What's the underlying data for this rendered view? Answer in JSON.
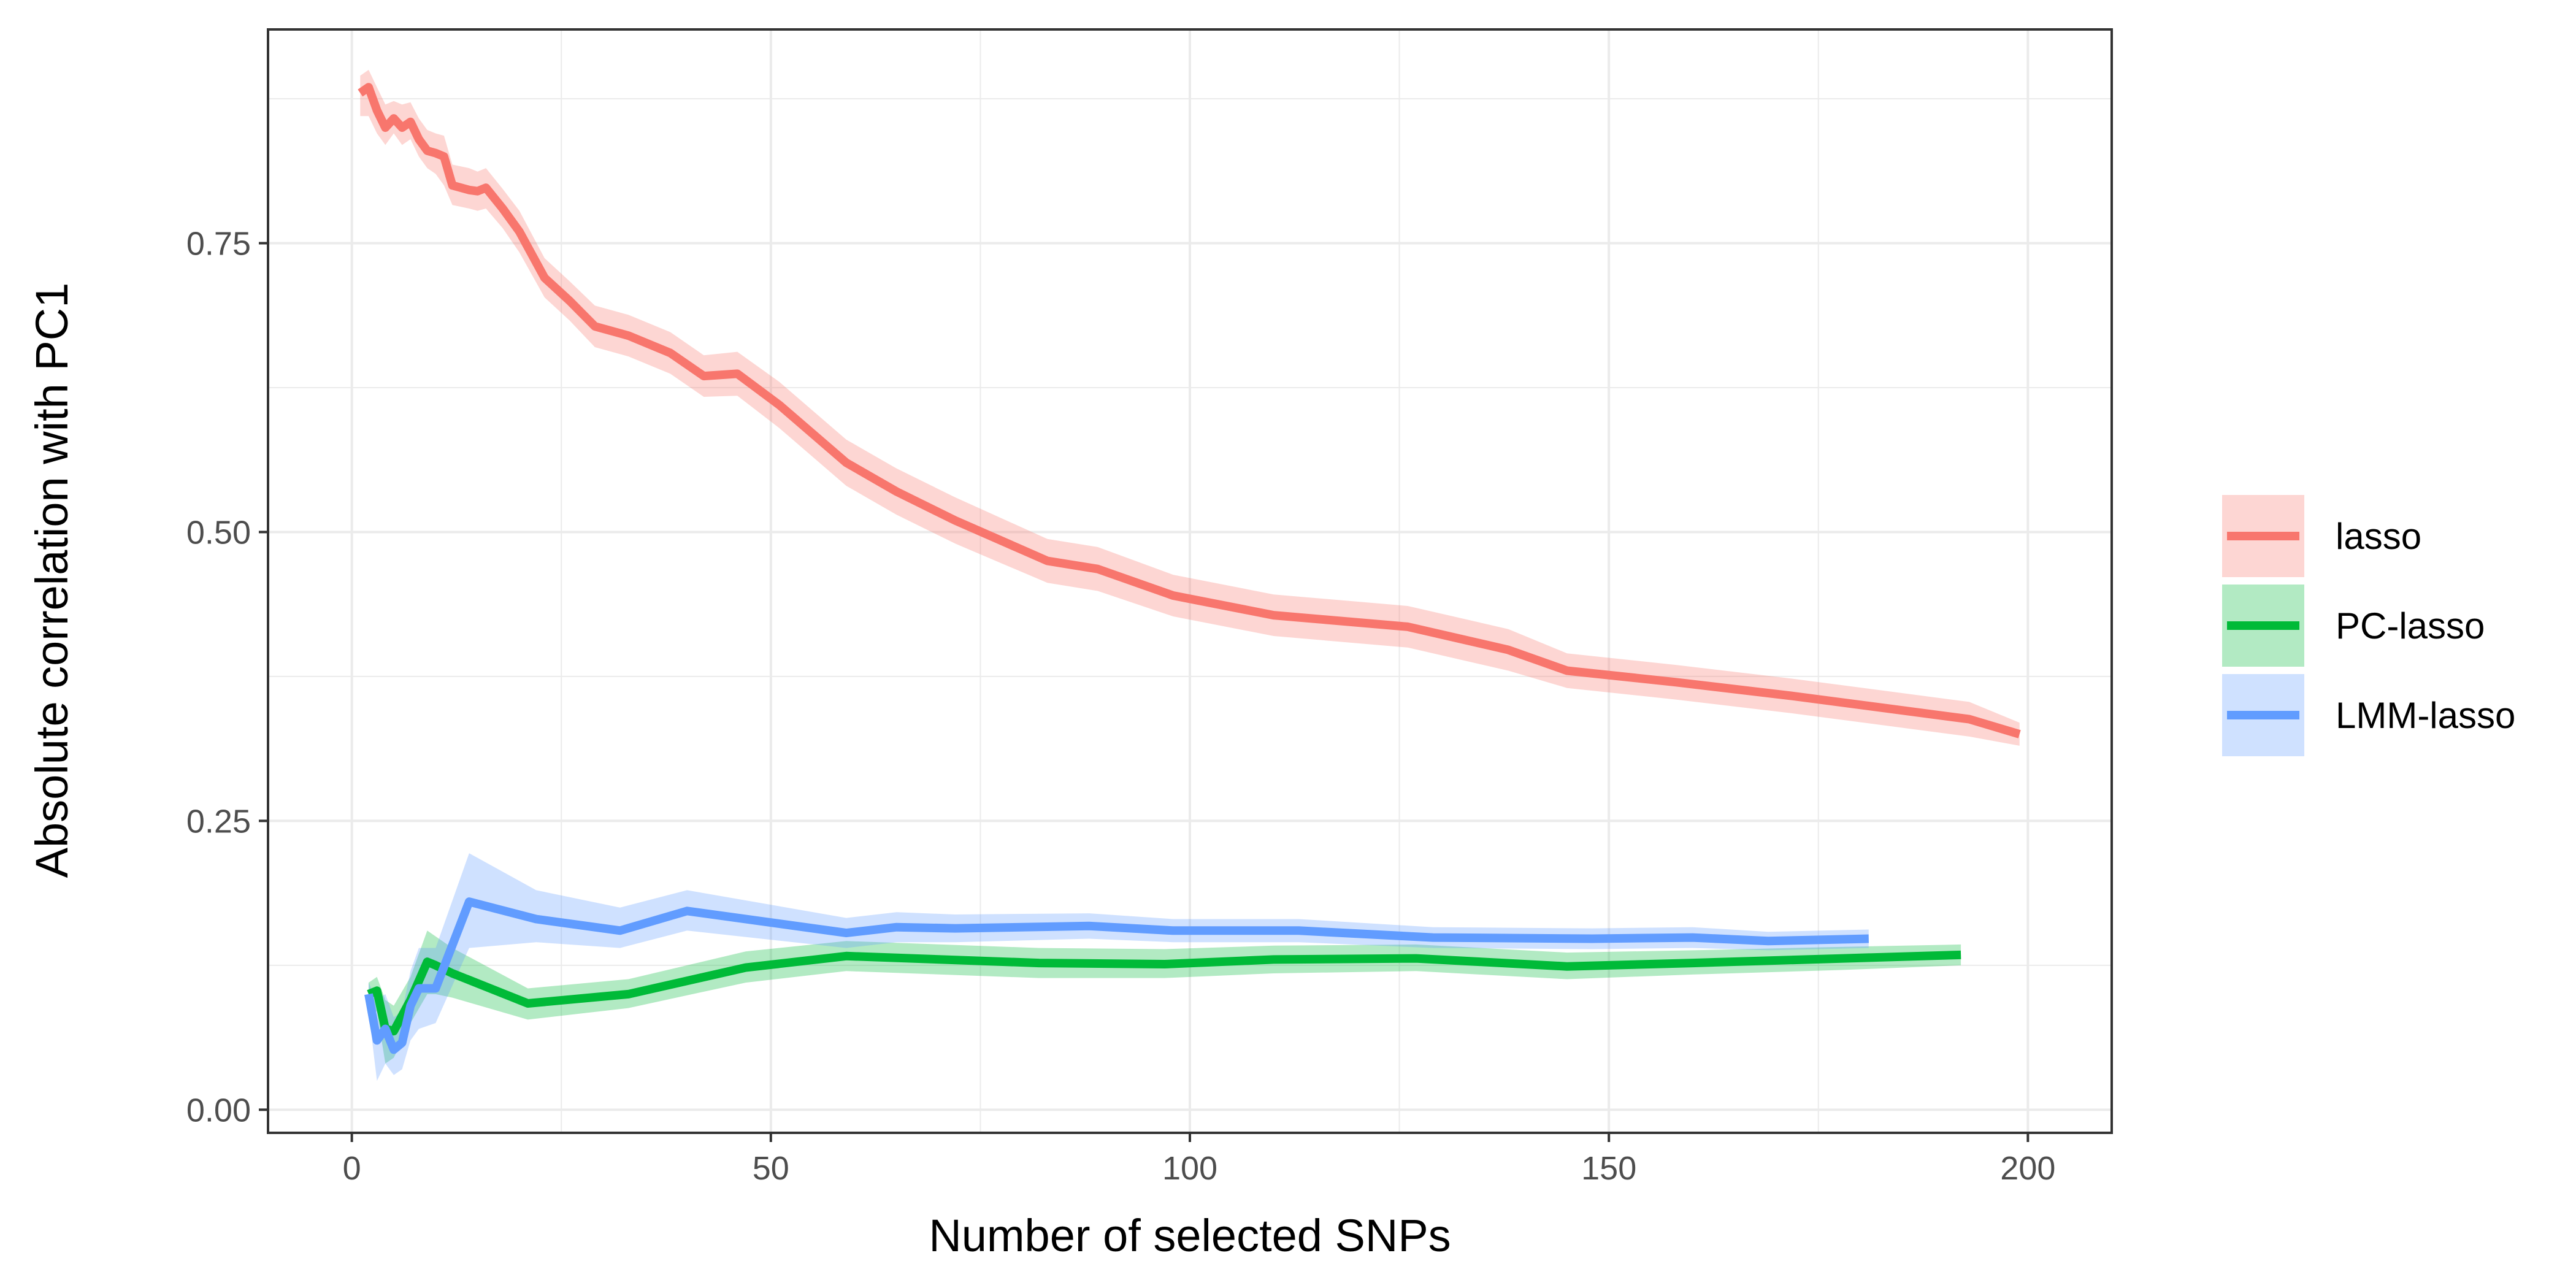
{
  "chart_data": {
    "type": "line",
    "title": "",
    "xlabel": "Number of selected SNPs",
    "ylabel": "Absolute correlation with PC1",
    "xlim": [
      -10,
      210
    ],
    "ylim": [
      -0.02,
      0.935
    ],
    "x_ticks": [
      0,
      50,
      100,
      150,
      200
    ],
    "x_tick_labels": [
      "0",
      "50",
      "100",
      "150",
      "200"
    ],
    "y_ticks": [
      0.0,
      0.25,
      0.5,
      0.75
    ],
    "y_tick_labels": [
      "0.00",
      "0.25",
      "0.50",
      "0.75"
    ],
    "grid": true,
    "legend_position": "right",
    "series": [
      {
        "name": "lasso",
        "color": "#F8766D",
        "x": [
          1,
          2,
          3,
          4,
          5,
          6,
          7,
          8,
          9,
          10,
          11,
          12,
          14,
          15,
          16,
          18,
          20,
          23,
          26,
          29,
          33,
          38,
          42,
          46,
          51,
          59,
          65,
          72,
          83,
          89,
          98,
          110,
          126,
          138,
          145,
          158,
          172,
          193,
          199
        ],
        "y": [
          0.88,
          0.885,
          0.865,
          0.85,
          0.858,
          0.85,
          0.855,
          0.84,
          0.83,
          0.828,
          0.825,
          0.8,
          0.796,
          0.795,
          0.798,
          0.78,
          0.76,
          0.72,
          0.7,
          0.678,
          0.67,
          0.655,
          0.635,
          0.637,
          0.61,
          0.56,
          0.535,
          0.51,
          0.475,
          0.468,
          0.445,
          0.428,
          0.418,
          0.398,
          0.38,
          0.37,
          0.358,
          0.338,
          0.325
        ],
        "lower": [
          0.86,
          0.86,
          0.845,
          0.835,
          0.845,
          0.835,
          0.84,
          0.825,
          0.815,
          0.81,
          0.8,
          0.783,
          0.78,
          0.778,
          0.78,
          0.763,
          0.742,
          0.703,
          0.683,
          0.66,
          0.652,
          0.637,
          0.617,
          0.618,
          0.59,
          0.54,
          0.515,
          0.49,
          0.456,
          0.449,
          0.427,
          0.41,
          0.4,
          0.38,
          0.365,
          0.355,
          0.343,
          0.323,
          0.315
        ],
        "upper": [
          0.895,
          0.9,
          0.885,
          0.87,
          0.873,
          0.87,
          0.872,
          0.858,
          0.848,
          0.845,
          0.843,
          0.818,
          0.815,
          0.812,
          0.815,
          0.797,
          0.778,
          0.737,
          0.717,
          0.696,
          0.688,
          0.673,
          0.653,
          0.656,
          0.63,
          0.58,
          0.555,
          0.53,
          0.494,
          0.487,
          0.463,
          0.446,
          0.436,
          0.416,
          0.395,
          0.385,
          0.373,
          0.353,
          0.335
        ]
      },
      {
        "name": "PC-lasso",
        "color": "#00BA38",
        "x": [
          2,
          3,
          4,
          5,
          7,
          9,
          10,
          12,
          21,
          33,
          47,
          59,
          82,
          97,
          110,
          127,
          145,
          160,
          178,
          192
        ],
        "y": [
          0.1,
          0.103,
          0.07,
          0.068,
          0.095,
          0.128,
          0.125,
          0.118,
          0.092,
          0.1,
          0.123,
          0.133,
          0.127,
          0.126,
          0.13,
          0.131,
          0.124,
          0.127,
          0.131,
          0.134
        ],
        "lower": [
          0.085,
          0.085,
          0.04,
          0.045,
          0.075,
          0.1,
          0.1,
          0.097,
          0.078,
          0.088,
          0.11,
          0.12,
          0.114,
          0.114,
          0.118,
          0.12,
          0.113,
          0.117,
          0.121,
          0.125
        ],
        "upper": [
          0.11,
          0.115,
          0.095,
          0.09,
          0.115,
          0.155,
          0.15,
          0.14,
          0.105,
          0.113,
          0.137,
          0.146,
          0.14,
          0.139,
          0.142,
          0.143,
          0.136,
          0.138,
          0.141,
          0.143
        ]
      },
      {
        "name": "LMM-lasso",
        "color": "#619CFF",
        "x": [
          2,
          3,
          4,
          5,
          6,
          7,
          8,
          10,
          14,
          22,
          32,
          40,
          59,
          65,
          72,
          88,
          98,
          113,
          129,
          148,
          160,
          169,
          181
        ],
        "y": [
          0.1,
          0.06,
          0.07,
          0.052,
          0.058,
          0.09,
          0.105,
          0.105,
          0.18,
          0.165,
          0.155,
          0.172,
          0.153,
          0.158,
          0.157,
          0.159,
          0.155,
          0.155,
          0.149,
          0.148,
          0.149,
          0.146,
          0.148
        ],
        "lower": [
          0.085,
          0.025,
          0.04,
          0.03,
          0.035,
          0.06,
          0.07,
          0.075,
          0.14,
          0.145,
          0.14,
          0.155,
          0.14,
          0.145,
          0.145,
          0.148,
          0.145,
          0.145,
          0.14,
          0.139,
          0.14,
          0.138,
          0.14
        ],
        "upper": [
          0.11,
          0.095,
          0.1,
          0.08,
          0.085,
          0.12,
          0.14,
          0.14,
          0.222,
          0.19,
          0.175,
          0.19,
          0.166,
          0.171,
          0.169,
          0.17,
          0.165,
          0.165,
          0.158,
          0.157,
          0.158,
          0.154,
          0.156
        ]
      }
    ]
  }
}
